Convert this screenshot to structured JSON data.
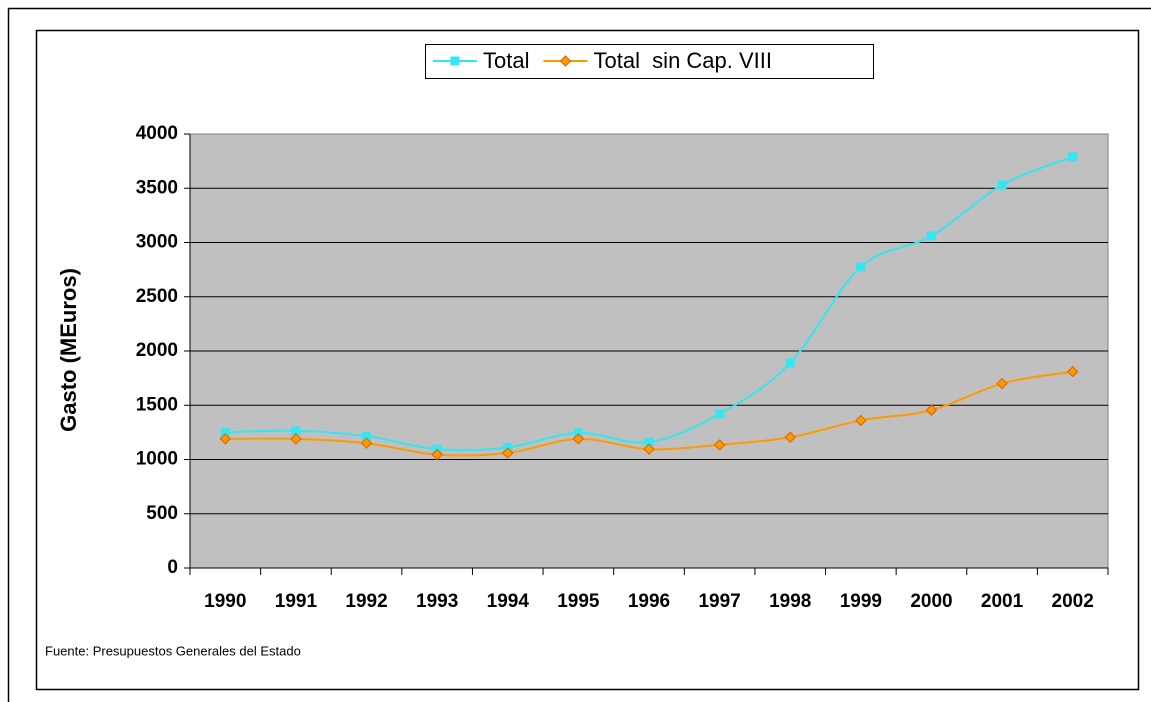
{
  "chart_data": {
    "type": "line",
    "y_label": "Gasto (MEuros)",
    "source": "Fuente: Presupuestos Generales del Estado",
    "categories": [
      "1990",
      "1991",
      "1992",
      "1993",
      "1994",
      "1995",
      "1996",
      "1997",
      "1998",
      "1999",
      "2000",
      "2001",
      "2002"
    ],
    "series": [
      {
        "name": "Total",
        "color": "#33e6f2",
        "marker": "square",
        "values": [
          1250,
          1265,
          1215,
          1095,
          1110,
          1245,
          1160,
          1420,
          1890,
          2775,
          3060,
          3530,
          3790
        ]
      },
      {
        "name": "Total  sin Cap. VIII",
        "color": "#ff9900",
        "marker": "diamond",
        "values": [
          1190,
          1190,
          1150,
          1045,
          1060,
          1190,
          1095,
          1135,
          1205,
          1360,
          1455,
          1700,
          1810
        ]
      }
    ],
    "ylim": [
      0,
      4000
    ],
    "yticks": [
      0,
      500,
      1000,
      1500,
      2000,
      2500,
      3000,
      3500,
      4000
    ],
    "grid": true,
    "smooth": true,
    "legend": "top"
  }
}
